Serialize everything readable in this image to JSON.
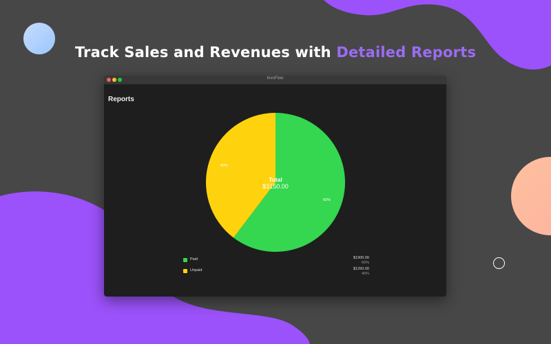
{
  "headline": {
    "prefix": "Track Sales and Revenues with ",
    "accent": "Detailed Reports"
  },
  "window": {
    "title": "InvoFlow",
    "traffic_lights": [
      "close",
      "minimize",
      "zoom"
    ]
  },
  "reports": {
    "title": "Reports"
  },
  "chart_data": {
    "type": "pie",
    "center_label": "Total",
    "center_value": "$3150.00",
    "slices": [
      {
        "name": "Paid",
        "value": 1900.0,
        "percent": 60,
        "percent_label": "60%",
        "amount_label": "$1900.00",
        "color": "#34d74f"
      },
      {
        "name": "Unpaid",
        "value": 1250.0,
        "percent": 40,
        "percent_label": "40%",
        "amount_label": "$1250.00",
        "color": "#fed30d"
      }
    ]
  },
  "colors": {
    "background": "#474747",
    "purple": "#9b52fa",
    "accent_text": "#9b6cf2",
    "window_bg": "#1e1e1e"
  }
}
